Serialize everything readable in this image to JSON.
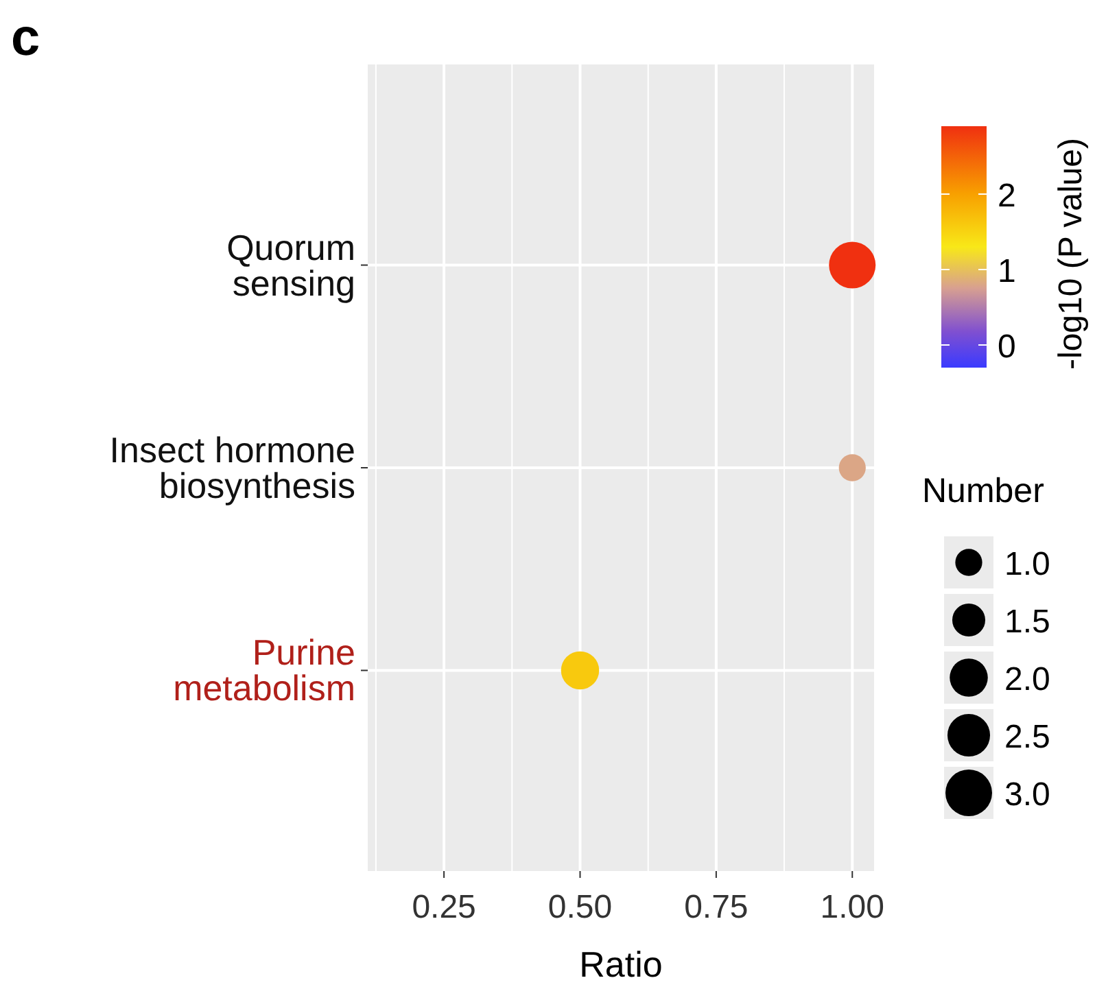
{
  "chart_data": {
    "type": "bubble",
    "title": "c",
    "orientation": "horizontal",
    "categories": [
      "Quorum\nsensing",
      "Insect hormone\nbiosynthesis",
      "Purine\nmetabolism"
    ],
    "values": [
      1.0,
      1.0,
      0.5
    ],
    "sizes": [
      3,
      1,
      2
    ],
    "cvalues": [
      2.9,
      0.8,
      1.6
    ],
    "size_legend": [
      {
        "value": 1,
        "label": "1.0"
      },
      {
        "value": 1.5,
        "label": "1.5"
      },
      {
        "value": 2,
        "label": "2.0"
      },
      {
        "value": 2.5,
        "label": "2.5"
      },
      {
        "value": 3,
        "label": "3.0"
      }
    ],
    "xlim": [
      0.11,
      1.04
    ],
    "xticks": [
      {
        "value": 0.25,
        "label": "0.25"
      },
      {
        "value": 0.5,
        "label": "0.50"
      },
      {
        "value": 0.75,
        "label": "0.75"
      },
      {
        "value": 1,
        "label": "1.00"
      }
    ],
    "clim": [
      -0.3,
      2.9
    ],
    "cticks": [
      0,
      1,
      2
    ],
    "xlabel": "Ratio",
    "clabel": "-log10 (P value)",
    "legend_title": "Number",
    "grid": true
  }
}
